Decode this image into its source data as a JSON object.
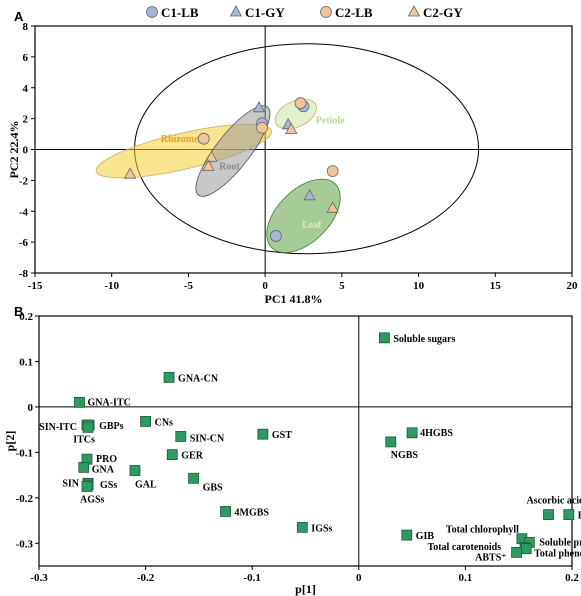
{
  "chart_data": [
    {
      "panel": "A",
      "type": "scatter",
      "xlabel": "PC1 41.8%",
      "ylabel": "PC2 22.4%",
      "xlim": [
        -15,
        20
      ],
      "ylim": [
        -8,
        8
      ],
      "xticks": [
        "-15",
        "-10",
        "-5",
        "0",
        "5",
        "10",
        "15",
        "20"
      ],
      "yticks": [
        "8",
        "6",
        "4",
        "2",
        "0",
        "-2",
        "-4",
        "-6",
        "-8"
      ],
      "legend": {
        "placement": "top",
        "entries": [
          {
            "label": "C1-LB",
            "marker": "circle",
            "color": "#aab6d6"
          },
          {
            "label": "C1-GY",
            "marker": "triangle",
            "color": "#aab6d6"
          },
          {
            "label": "C2-LB",
            "marker": "circle",
            "color": "#f2c49a"
          },
          {
            "label": "C2-GY",
            "marker": "triangle",
            "color": "#f2c49a"
          }
        ]
      },
      "groups": [
        {
          "label": "Rhizome",
          "color": "#f5d033",
          "text_color": "#e8a020"
        },
        {
          "label": "Root",
          "color": "#9a9a9a",
          "text_color": "#8a8a8a"
        },
        {
          "label": "Petiole",
          "color": "#c8e6a0",
          "text_color": "#b7d98b"
        },
        {
          "label": "Leaf",
          "color": "#5ea040",
          "text_color": "#d9ecc0"
        }
      ],
      "series": [
        {
          "name": "C1-LB",
          "points": [
            {
              "x": -0.2,
              "y": 1.7
            },
            {
              "x": 2.5,
              "y": 2.8
            },
            {
              "x": 0.7,
              "y": -5.6
            }
          ]
        },
        {
          "name": "C1-GY",
          "points": [
            {
              "x": -0.4,
              "y": 2.7
            },
            {
              "x": 1.5,
              "y": 1.6
            },
            {
              "x": 2.9,
              "y": -3.0
            }
          ]
        },
        {
          "name": "C2-LB",
          "points": [
            {
              "x": -4.0,
              "y": 0.7
            },
            {
              "x": -0.2,
              "y": 1.4
            },
            {
              "x": 2.3,
              "y": 3.0
            },
            {
              "x": 4.4,
              "y": -1.4
            }
          ]
        },
        {
          "name": "C2-GY",
          "points": [
            {
              "x": -8.8,
              "y": -1.6
            },
            {
              "x": -3.5,
              "y": -0.5
            },
            {
              "x": -3.7,
              "y": -1.1
            },
            {
              "x": 1.7,
              "y": 1.3
            },
            {
              "x": 4.4,
              "y": -3.8
            }
          ]
        }
      ]
    },
    {
      "panel": "B",
      "type": "scatter",
      "xlabel": "p[1]",
      "ylabel": "p[2]",
      "xlim": [
        -0.3,
        0.2
      ],
      "ylim": [
        -0.35,
        0.2
      ],
      "xticks": [
        "-0.3",
        "-0.2",
        "-0.1",
        "0",
        "0.1",
        "0.2"
      ],
      "yticks": [
        "0.2",
        "0.1",
        "0",
        "-0.1",
        "-0.2",
        "-0.3"
      ],
      "color": "#2e9a63",
      "points": [
        {
          "label": "Soluble sugars",
          "x": 0.024,
          "y": 0.152
        },
        {
          "label": "GNA-CN",
          "x": -0.178,
          "y": 0.065
        },
        {
          "label": "GNA-ITC",
          "x": -0.262,
          "y": 0.01
        },
        {
          "label": "SIN-ITC",
          "x": -0.255,
          "y": -0.04
        },
        {
          "label": "GBPs",
          "x": -0.253,
          "y": -0.04
        },
        {
          "label": "ITCs",
          "x": -0.254,
          "y": -0.045
        },
        {
          "label": "CNs",
          "x": -0.2,
          "y": -0.032
        },
        {
          "label": "SIN-CN",
          "x": -0.167,
          "y": -0.065
        },
        {
          "label": "GST",
          "x": -0.09,
          "y": -0.06
        },
        {
          "label": "4HGBS",
          "x": 0.05,
          "y": -0.057
        },
        {
          "label": "NGBS",
          "x": 0.03,
          "y": -0.077
        },
        {
          "label": "GER",
          "x": -0.175,
          "y": -0.105
        },
        {
          "label": "PRO",
          "x": -0.255,
          "y": -0.115
        },
        {
          "label": "GNA",
          "x": -0.258,
          "y": -0.133
        },
        {
          "label": "GAL",
          "x": -0.21,
          "y": -0.14
        },
        {
          "label": "GBS",
          "x": -0.155,
          "y": -0.157
        },
        {
          "label": "SIN",
          "x": -0.254,
          "y": -0.168
        },
        {
          "label": "GSs",
          "x": -0.254,
          "y": -0.172
        },
        {
          "label": "AGSs",
          "x": -0.255,
          "y": -0.175
        },
        {
          "label": "4MGBS",
          "x": -0.125,
          "y": -0.23
        },
        {
          "label": "IGSs",
          "x": -0.053,
          "y": -0.265
        },
        {
          "label": "Ascorbic acid",
          "x": 0.178,
          "y": -0.237
        },
        {
          "label": "FRAP",
          "x": 0.197,
          "y": -0.237
        },
        {
          "label": "GIB",
          "x": 0.045,
          "y": -0.282
        },
        {
          "label": "Total chlorophyll",
          "x": 0.153,
          "y": -0.29
        },
        {
          "label": "Soluble protein",
          "x": 0.16,
          "y": -0.298
        },
        {
          "label": "Total carotenoids",
          "x": 0.156,
          "y": -0.31
        },
        {
          "label": "Total phenolics",
          "x": 0.157,
          "y": -0.312
        },
        {
          "label": "ABTS⁺",
          "x": 0.148,
          "y": -0.32
        }
      ]
    }
  ]
}
